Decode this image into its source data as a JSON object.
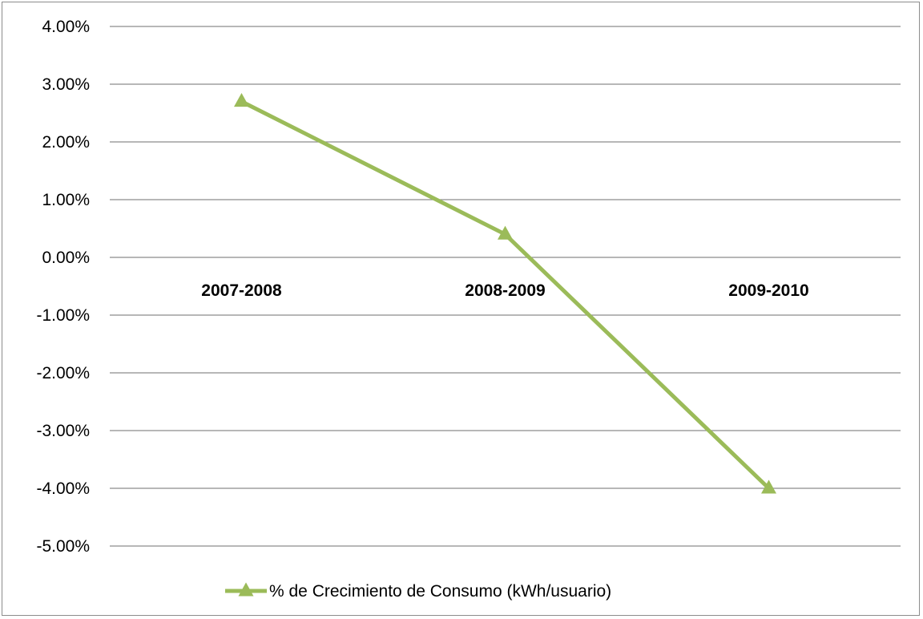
{
  "chart_data": {
    "type": "line",
    "title": "",
    "xlabel": "",
    "ylabel": "",
    "categories": [
      "2007-2008",
      "2008-2009",
      "2009-2010"
    ],
    "series": [
      {
        "name": "% de Crecimiento de Consumo (kWh/usuario)",
        "values": [
          0.027,
          0.004,
          -0.04
        ],
        "color": "#9bbb59",
        "marker": "triangle"
      }
    ],
    "ylim": [
      -0.05,
      0.04
    ],
    "y_ticks": [
      0.04,
      0.03,
      0.02,
      0.01,
      0.0,
      -0.01,
      -0.02,
      -0.03,
      -0.04,
      -0.05
    ],
    "y_tick_labels": [
      "4.00%",
      "3.00%",
      "2.00%",
      "1.00%",
      "0.00%",
      "-1.00%",
      "-2.00%",
      "-3.00%",
      "-4.00%",
      "-5.00%"
    ],
    "grid": true,
    "legend_position": "bottom",
    "gridline_color": "#8c8c8c"
  }
}
